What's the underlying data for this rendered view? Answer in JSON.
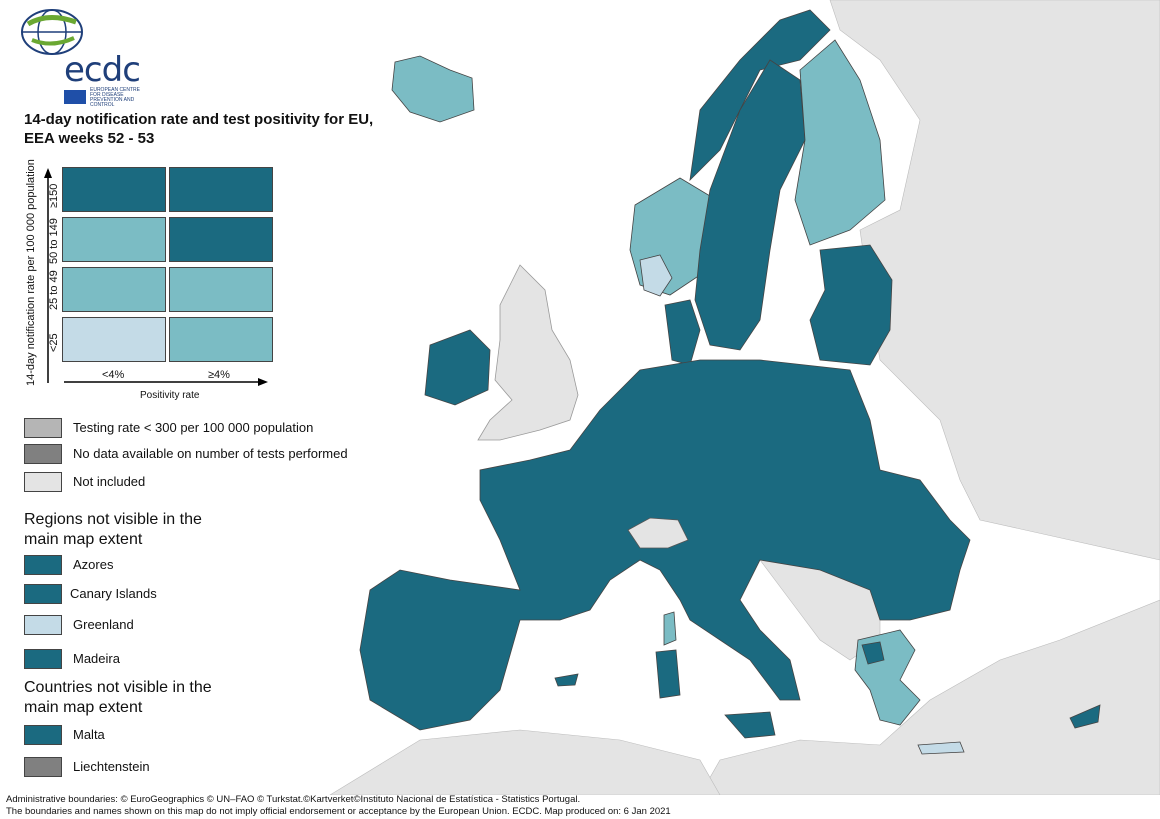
{
  "logo": {
    "text": "ecdc",
    "subtitle": "EUROPEAN CENTRE FOR DISEASE PREVENTION AND CONTROL"
  },
  "title": "14-day notification rate and test positivity for EU, EEA weeks 52 - 53",
  "axes": {
    "y_label": "14-day notification rate per 100 000 population",
    "x_label": "Positivity rate",
    "y_categories": [
      "≥150",
      "50 to 149",
      "25 to 49",
      "<25"
    ],
    "x_categories": [
      "<4%",
      "≥4%"
    ]
  },
  "colors": {
    "dark_teal": "#1b6a80",
    "mid_teal": "#7bbcc4",
    "light_blue": "#c4dbe7",
    "not_included": "#e4e4e4",
    "testing_low": "#b5b5b5",
    "no_data": "#808080",
    "sea": "#ffffff"
  },
  "grid": [
    [
      "#1b6a80",
      "#1b6a80"
    ],
    [
      "#7bbcc4",
      "#1b6a80"
    ],
    [
      "#7bbcc4",
      "#7bbcc4"
    ],
    [
      "#c4dbe7",
      "#7bbcc4"
    ]
  ],
  "status_legend": [
    {
      "label": "Testing rate < 300 per 100 000 population",
      "color": "#b5b5b5"
    },
    {
      "label": "No data available on number of tests performed",
      "color": "#808080"
    },
    {
      "label": "Not included",
      "color": "#e4e4e4"
    }
  ],
  "regions_heading": "Regions not visible in the main map extent",
  "regions": [
    {
      "label": "Azores",
      "color": "#1b6a80"
    },
    {
      "label": "Canary Islands",
      "color": "#1b6a80"
    },
    {
      "label": "Greenland",
      "color": "#c4dbe7"
    },
    {
      "label": "Madeira",
      "color": "#1b6a80"
    }
  ],
  "countries_heading": "Countries not visible in the main map extent",
  "countries": [
    {
      "label": "Malta",
      "color": "#1b6a80"
    },
    {
      "label": "Liechtenstein",
      "color": "#808080"
    }
  ],
  "footer": {
    "line1": "Administrative boundaries: © EuroGeographics © UN–FAO © Turkstat.©Kartverket©Instituto Nacional de Estatística - Statistics Portugal.",
    "line2": "The boundaries and names shown on this map do not imply official endorsement or acceptance by the European Union. ECDC. Map produced on: 6 Jan 2021"
  }
}
